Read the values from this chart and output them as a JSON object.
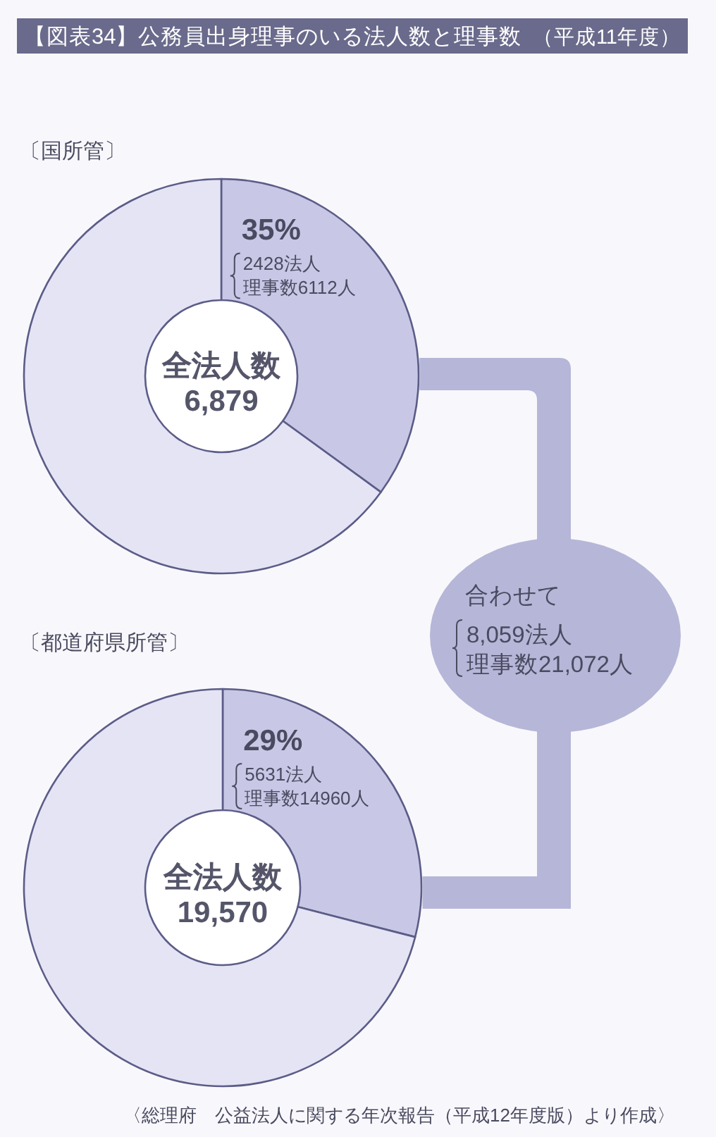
{
  "chart_data": [
    {
      "type": "donut",
      "title": "【図表34】公務員出身理事のいる法人数と理事数",
      "subtitle": "（平成11年度）",
      "categories": [
        null,
        null
      ],
      "values": [
        35,
        65
      ],
      "colors": [
        "#c8c8e6",
        "#e4e4f5"
      ],
      "value_labels": [
        "35%",
        null
      ],
      "annotations": [
        "〔国所管〕",
        "2428法人",
        "理事数6112人",
        "全法人数",
        "6,879"
      ]
    },
    {
      "type": "donut",
      "categories": [
        null,
        null
      ],
      "values": [
        29,
        71
      ],
      "colors": [
        "#c8c8e6",
        "#e4e4f5"
      ],
      "value_labels": [
        "29%",
        null
      ],
      "annotations": [
        "〔都道府県所管〕",
        "5631法人",
        "理事数14960人",
        "全法人数",
        "19,570",
        "〈総理府　公益法人に関する年次報告（平成12年度版）より作成〉"
      ]
    },
    {
      "type": "other",
      "annotations": [
        "合わせて",
        "8,059法人",
        "理事数21,072人"
      ]
    }
  ]
}
